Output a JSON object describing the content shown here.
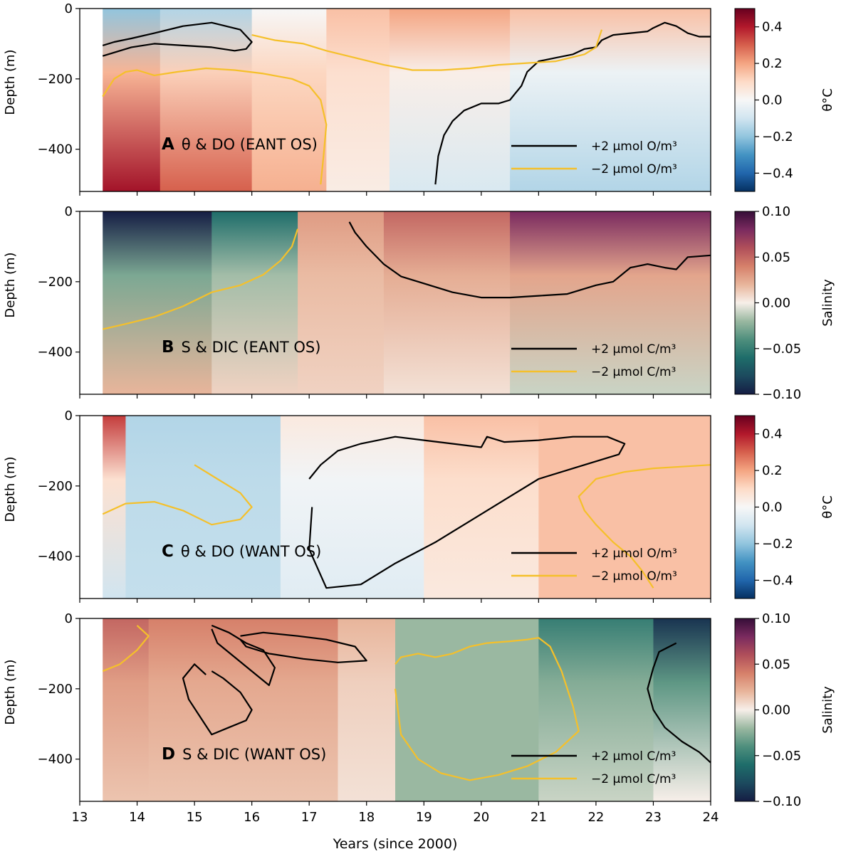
{
  "figure": {
    "xlabel": "Years (since 2000)",
    "xticks": [
      "13",
      "14",
      "15",
      "16",
      "17",
      "18",
      "19",
      "20",
      "21",
      "22",
      "23",
      "24"
    ],
    "yticks": [
      "0",
      "−200",
      "−400"
    ],
    "ylabel": "Depth (m)"
  },
  "chart_data": [
    {
      "type": "heatmap",
      "panel": "A",
      "label_letter": "A",
      "label_text": "θ & DO (EANT OS)",
      "xlim": [
        13,
        24
      ],
      "ylim": [
        -520,
        0
      ],
      "colorbar": {
        "label": "θ°C",
        "colormap": "RdBu_r",
        "range": [
          -0.5,
          0.5
        ],
        "ticks": [
          "0.4",
          "0.2",
          "0.0",
          "−0.2",
          "−0.4"
        ],
        "tick_values": [
          0.4,
          0.2,
          0.0,
          -0.2,
          -0.4
        ]
      },
      "field_summary": [
        {
          "t0": 13.4,
          "t1": 14.4,
          "value_surface": -0.2,
          "value_deep": 0.42
        },
        {
          "t0": 14.4,
          "t1": 16.0,
          "value_surface": -0.15,
          "value_deep": 0.3
        },
        {
          "t0": 16.0,
          "t1": 17.3,
          "value_surface": 0.0,
          "value_deep": 0.18
        },
        {
          "t0": 17.3,
          "t1": 18.4,
          "value_surface": 0.15,
          "value_deep": 0.04
        },
        {
          "t0": 18.4,
          "t1": 20.5,
          "value_surface": 0.2,
          "value_deep": -0.08
        },
        {
          "t0": 20.5,
          "t1": 24.0,
          "value_surface": 0.15,
          "value_deep": -0.15
        }
      ],
      "contours": [
        {
          "level": "+2 μmol O/m³",
          "color": "#000000",
          "x": [
            13.4,
            13.6,
            13.9,
            14.3,
            14.8,
            15.3,
            15.8,
            16.0,
            15.9,
            15.7,
            15.3,
            14.8,
            14.3,
            13.9,
            13.4
          ],
          "y": [
            -105,
            -95,
            -85,
            -70,
            -50,
            -40,
            -60,
            -95,
            -115,
            -120,
            -110,
            -105,
            -100,
            -110,
            -135
          ]
        },
        {
          "level": "+2 μmol O/m³",
          "color": "#000000",
          "x": [
            19.2,
            19.25,
            19.35,
            19.5,
            19.7,
            20.0,
            20.3,
            20.5,
            20.6,
            20.7,
            20.8,
            21.0,
            21.3,
            21.6,
            21.8,
            22.0,
            22.1,
            22.3,
            22.6,
            22.9,
            23.0,
            23.2,
            23.4,
            23.6,
            23.8,
            24.0
          ],
          "y": [
            -500,
            -420,
            -360,
            -320,
            -290,
            -270,
            -270,
            -260,
            -240,
            -220,
            -180,
            -150,
            -140,
            -130,
            -115,
            -110,
            -90,
            -75,
            -70,
            -65,
            -55,
            -40,
            -50,
            -70,
            -80,
            -80
          ]
        },
        {
          "level": "−2 μmol O/m³",
          "color": "#f5c02a",
          "x": [
            13.4,
            13.6,
            13.8,
            14.0,
            14.3,
            14.7,
            15.2,
            15.7,
            16.2,
            16.7,
            17.0,
            17.2,
            17.3,
            17.25,
            17.2
          ],
          "y": [
            -250,
            -200,
            -180,
            -175,
            -190,
            -180,
            -170,
            -175,
            -185,
            -200,
            -220,
            -260,
            -330,
            -420,
            -500
          ]
        },
        {
          "level": "−2 μmol O/m³",
          "color": "#f5c02a",
          "x": [
            16.0,
            16.4,
            16.9,
            17.3,
            17.8,
            18.3,
            18.8,
            19.3,
            19.8,
            20.3,
            20.8,
            21.3,
            21.8,
            22.0,
            22.1
          ],
          "y": [
            -75,
            -90,
            -100,
            -120,
            -140,
            -160,
            -175,
            -175,
            -170,
            -160,
            -155,
            -150,
            -130,
            -110,
            -60
          ]
        }
      ],
      "legend": {
        "position": "lower-right",
        "entries": [
          "+2 μmol O/m³",
          "−2 μmol O/m³"
        ]
      }
    },
    {
      "type": "heatmap",
      "panel": "B",
      "label_letter": "B",
      "label_text": "S & DIC (EANT OS)",
      "xlim": [
        13,
        24
      ],
      "ylim": [
        -520,
        0
      ],
      "colorbar": {
        "label": "Salinity",
        "colormap": "curl",
        "range": [
          -0.1,
          0.1
        ],
        "ticks": [
          "0.10",
          "0.05",
          "0.00",
          "−0.05",
          "−0.10"
        ],
        "tick_values": [
          0.1,
          0.05,
          0.0,
          -0.05,
          -0.1
        ]
      },
      "field_summary": [
        {
          "t0": 13.4,
          "t1": 15.3,
          "value_surface": -0.1,
          "value_deep": 0.02
        },
        {
          "t0": 15.3,
          "t1": 16.8,
          "value_surface": -0.06,
          "value_deep": 0.01
        },
        {
          "t0": 16.8,
          "t1": 18.3,
          "value_surface": 0.03,
          "value_deep": 0.01
        },
        {
          "t0": 18.3,
          "t1": 20.5,
          "value_surface": 0.05,
          "value_deep": 0.005
        },
        {
          "t0": 20.5,
          "t1": 24.0,
          "value_surface": 0.08,
          "value_deep": -0.01
        }
      ],
      "contours": [
        {
          "level": "+2 μmol C/m³",
          "color": "#000000",
          "x": [
            17.7,
            17.8,
            18.0,
            18.3,
            18.6,
            19.0,
            19.5,
            20.0,
            20.5,
            21.0,
            21.5,
            22.0,
            22.3,
            22.6,
            22.9,
            23.2,
            23.4,
            23.6,
            24.0
          ],
          "y": [
            -30,
            -60,
            -100,
            -150,
            -185,
            -205,
            -230,
            -245,
            -245,
            -240,
            -235,
            -210,
            -200,
            -160,
            -150,
            -160,
            -165,
            -130,
            -125
          ]
        },
        {
          "level": "−2 μmol C/m³",
          "color": "#f5c02a",
          "x": [
            13.4,
            13.8,
            14.3,
            14.8,
            15.3,
            15.8,
            16.2,
            16.5,
            16.7,
            16.8
          ],
          "y": [
            -335,
            -320,
            -300,
            -270,
            -230,
            -210,
            -180,
            -140,
            -100,
            -50
          ]
        }
      ],
      "legend": {
        "position": "lower-right",
        "entries": [
          "+2 μmol C/m³",
          "−2 μmol C/m³"
        ]
      }
    },
    {
      "type": "heatmap",
      "panel": "C",
      "label_letter": "C",
      "label_text": "θ & DO (WANT OS)",
      "xlim": [
        13,
        24
      ],
      "ylim": [
        -520,
        0
      ],
      "colorbar": {
        "label": "θ°C",
        "colormap": "RdBu_r",
        "range": [
          -0.5,
          0.5
        ],
        "ticks": [
          "0.4",
          "0.2",
          "0.0",
          "−0.2",
          "−0.4"
        ],
        "tick_values": [
          0.4,
          0.2,
          0.0,
          -0.2,
          -0.4
        ]
      },
      "field_summary": [
        {
          "t0": 13.4,
          "t1": 13.8,
          "value_surface": 0.35,
          "value_deep": -0.1
        },
        {
          "t0": 13.8,
          "t1": 16.5,
          "value_surface": -0.15,
          "value_deep": -0.12
        },
        {
          "t0": 16.5,
          "t1": 19.0,
          "value_surface": 0.05,
          "value_deep": -0.06
        },
        {
          "t0": 19.0,
          "t1": 21.0,
          "value_surface": 0.15,
          "value_deep": 0.05
        },
        {
          "t0": 21.0,
          "t1": 24.0,
          "value_surface": 0.15,
          "value_deep": 0.15
        }
      ],
      "contours": [
        {
          "level": "+2 μmol O/m³",
          "color": "#000000",
          "x": [
            17.0,
            17.2,
            17.5,
            17.9,
            18.5,
            19.0,
            19.5,
            20.0,
            20.1,
            20.4,
            21.0,
            21.6,
            22.2,
            22.5,
            22.4,
            21.8,
            21.0,
            20.5,
            19.8,
            19.2,
            18.5,
            17.9,
            17.3,
            17.0,
            17.05
          ],
          "y": [
            -180,
            -140,
            -100,
            -80,
            -60,
            -70,
            -80,
            -90,
            -60,
            -75,
            -70,
            -60,
            -60,
            -80,
            -110,
            -140,
            -180,
            -230,
            -300,
            -360,
            -420,
            -480,
            -490,
            -380,
            -260
          ]
        },
        {
          "level": "−2 μmol O/m³",
          "color": "#f5c02a",
          "x": [
            13.4,
            13.8,
            14.3,
            14.8,
            15.3,
            15.8,
            16.0,
            15.8,
            15.4,
            15.0
          ],
          "y": [
            -280,
            -250,
            -245,
            -270,
            -310,
            -295,
            -260,
            -220,
            -180,
            -140
          ]
        },
        {
          "level": "−2 μmol O/m³",
          "color": "#f5c02a",
          "x": [
            23.0,
            22.8,
            22.6,
            22.3,
            22.0,
            21.8,
            21.7,
            22.0,
            22.5,
            23.0,
            23.5,
            24.0
          ],
          "y": [
            -490,
            -440,
            -400,
            -360,
            -310,
            -270,
            -230,
            -180,
            -160,
            -150,
            -145,
            -140
          ]
        }
      ],
      "legend": {
        "position": "lower-right",
        "entries": [
          "+2 μmol O/m³",
          "−2 μmol O/m³"
        ]
      }
    },
    {
      "type": "heatmap",
      "panel": "D",
      "label_letter": "D",
      "label_text": "S & DIC (WANT OS)",
      "xlim": [
        13,
        24
      ],
      "ylim": [
        -520,
        0
      ],
      "colorbar": {
        "label": "Salinity",
        "colormap": "curl",
        "range": [
          -0.1,
          0.1
        ],
        "ticks": [
          "0.10",
          "0.05",
          "0.00",
          "−0.05",
          "−0.10"
        ],
        "tick_values": [
          0.1,
          0.05,
          0.0,
          -0.05,
          -0.1
        ]
      },
      "field_summary": [
        {
          "t0": 13.4,
          "t1": 14.2,
          "value_surface": 0.05,
          "value_deep": 0.015
        },
        {
          "t0": 14.2,
          "t1": 17.5,
          "value_surface": 0.04,
          "value_deep": 0.015
        },
        {
          "t0": 17.5,
          "t1": 18.5,
          "value_surface": 0.02,
          "value_deep": 0.005
        },
        {
          "t0": 18.5,
          "t1": 21.0,
          "value_surface": -0.02,
          "value_deep": -0.02
        },
        {
          "t0": 21.0,
          "t1": 23.0,
          "value_surface": -0.05,
          "value_deep": -0.01
        },
        {
          "t0": 23.0,
          "t1": 24.0,
          "value_surface": -0.09,
          "value_deep": 0.0
        }
      ],
      "contours": [
        {
          "level": "+2 μmol C/m³",
          "color": "#000000",
          "x": [
            15.2,
            15.0,
            14.8,
            14.9,
            15.1,
            15.3,
            15.6,
            15.9,
            16.0,
            15.8,
            15.5,
            15.3
          ],
          "y": [
            -160,
            -130,
            -170,
            -230,
            -280,
            -330,
            -310,
            -290,
            -260,
            -210,
            -170,
            -150
          ]
        },
        {
          "level": "+2 μmol C/m³",
          "color": "#000000",
          "x": [
            15.3,
            15.6,
            15.9,
            16.2,
            16.4,
            16.3,
            16.0,
            15.7,
            15.4,
            15.3
          ],
          "y": [
            -20,
            -40,
            -70,
            -90,
            -140,
            -190,
            -150,
            -110,
            -70,
            -30
          ]
        },
        {
          "level": "+2 μmol C/m³",
          "color": "#000000",
          "x": [
            15.8,
            16.2,
            16.8,
            17.3,
            17.8,
            18.0,
            17.5,
            16.9,
            16.3,
            15.9,
            15.8
          ],
          "y": [
            -50,
            -40,
            -50,
            -60,
            -80,
            -120,
            -125,
            -115,
            -100,
            -80,
            -60
          ]
        },
        {
          "level": "+2 μmol C/m³",
          "color": "#000000",
          "x": [
            23.4,
            23.1,
            23.0,
            22.9,
            23.0,
            23.2,
            23.5,
            23.8,
            24.0
          ],
          "y": [
            -70,
            -95,
            -140,
            -200,
            -260,
            -310,
            -350,
            -380,
            -410
          ]
        },
        {
          "level": "−2 μmol C/m³",
          "color": "#f5c02a",
          "x": [
            18.5,
            18.6,
            18.9,
            19.2,
            19.5,
            19.8,
            20.1,
            20.5,
            20.8,
            21.0,
            21.2,
            21.4,
            21.6,
            21.7,
            21.3,
            20.8,
            20.3,
            19.8,
            19.3,
            18.9,
            18.6,
            18.5
          ],
          "y": [
            -130,
            -110,
            -100,
            -110,
            -100,
            -80,
            -70,
            -65,
            -60,
            -55,
            -80,
            -150,
            -250,
            -320,
            -380,
            -420,
            -445,
            -460,
            -440,
            -400,
            -330,
            -200
          ]
        },
        {
          "level": "−2 μmol C/m³",
          "color": "#f5c02a",
          "x": [
            13.4,
            13.7,
            14.0,
            14.2,
            14.0
          ],
          "y": [
            -150,
            -130,
            -90,
            -50,
            -20
          ]
        }
      ],
      "legend": {
        "position": "lower-right",
        "entries": [
          "+2 μmol C/m³",
          "−2 μmol C/m³"
        ]
      }
    }
  ]
}
